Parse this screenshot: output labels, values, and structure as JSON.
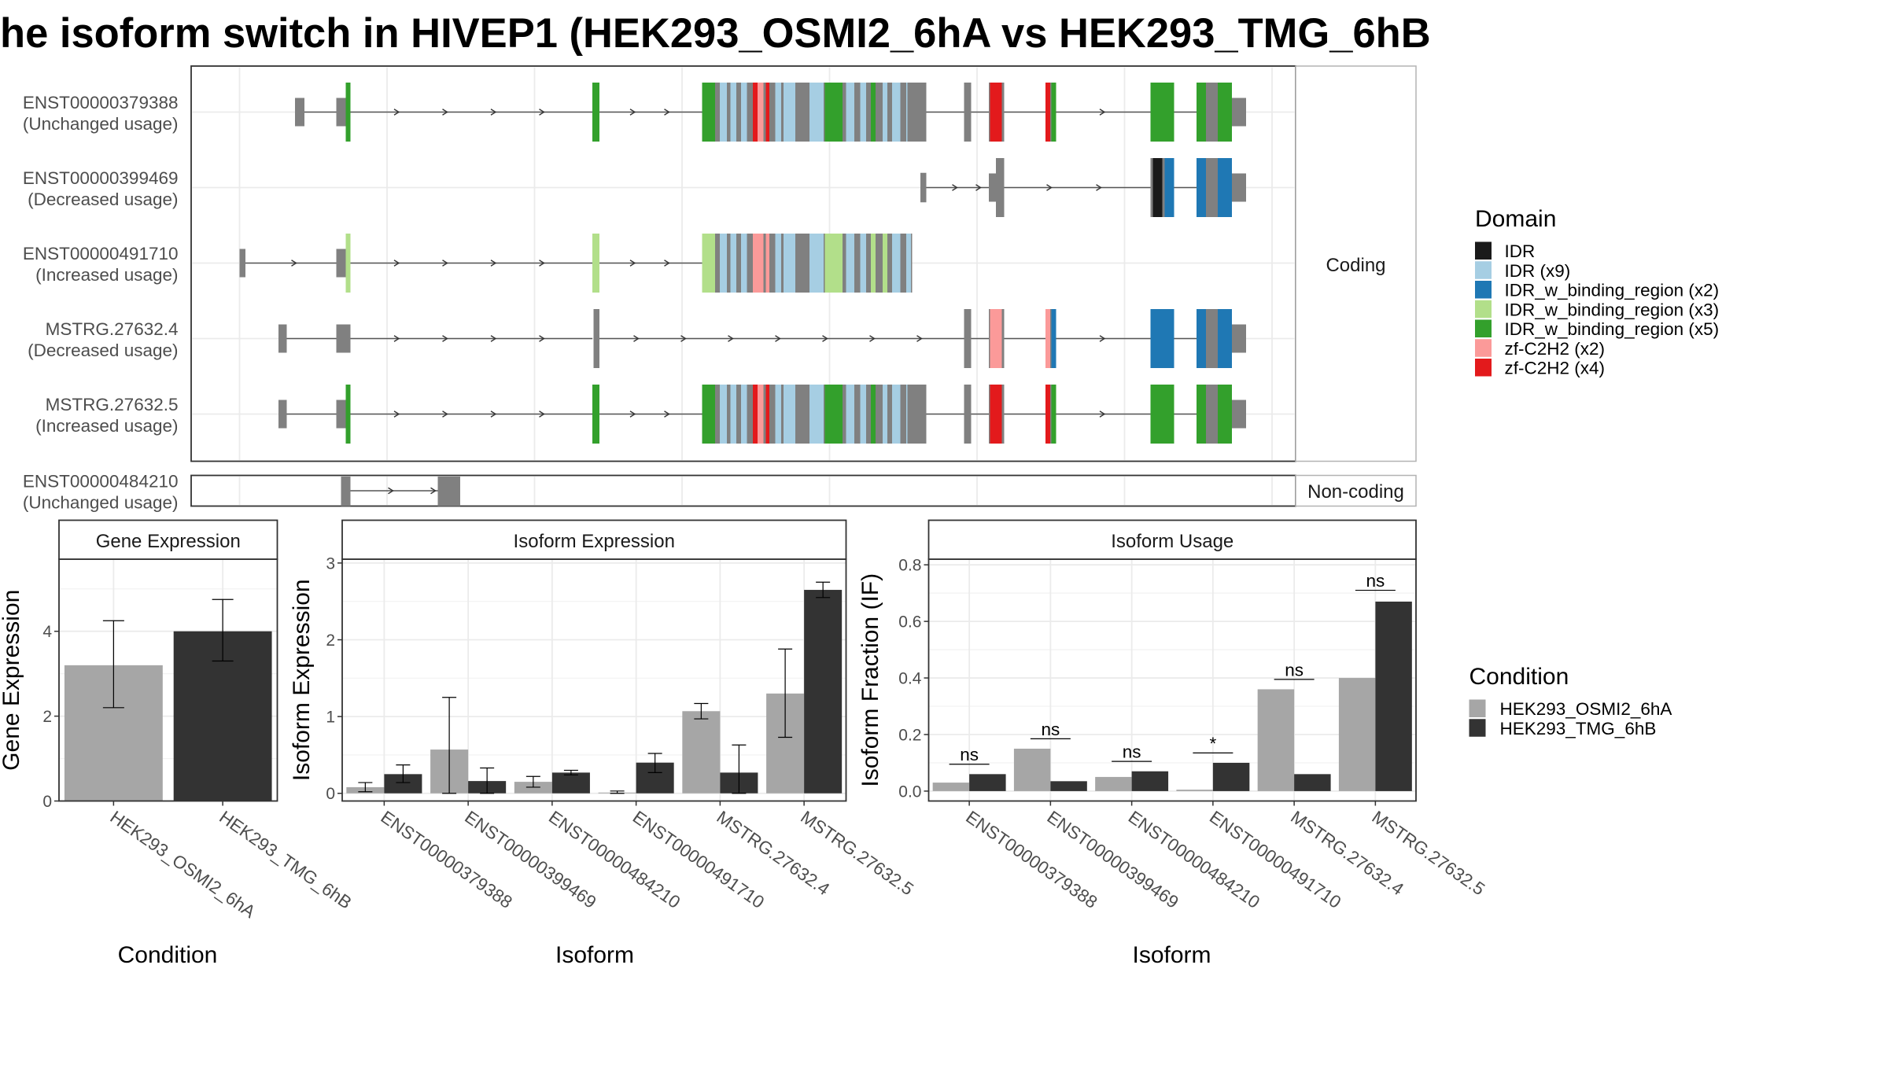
{
  "title": "he isoform switch in HIVEP1 (HEK293_OSMI2_6hA vs HEK293_TMG_6hB",
  "colors": {
    "cond_a": "#a6a6a6",
    "cond_b": "#333333",
    "utr": "#808080",
    "intron": "#555555"
  },
  "structure": {
    "facets": {
      "coding": "Coding",
      "noncoding": "Non-coding"
    },
    "domain_legend": {
      "title": "Domain",
      "items": [
        {
          "label": "IDR",
          "color": "#1a1a1a"
        },
        {
          "label": "IDR (x9)",
          "color": "#a6cee3"
        },
        {
          "label": "IDR_w_binding_region (x2)",
          "color": "#1f78b4"
        },
        {
          "label": "IDR_w_binding_region (x3)",
          "color": "#b2df8a"
        },
        {
          "label": "IDR_w_binding_region (x5)",
          "color": "#33a02c"
        },
        {
          "label": "zf-C2H2 (x2)",
          "color": "#fb9a99"
        },
        {
          "label": "zf-C2H2 (x4)",
          "color": "#e31a1c"
        }
      ]
    },
    "transcripts": [
      {
        "id": "ENST00000379388",
        "usage": "(Unchanged usage)",
        "facet": "coding"
      },
      {
        "id": "ENST00000399469",
        "usage": "(Decreased usage)",
        "facet": "coding"
      },
      {
        "id": "ENST00000491710",
        "usage": "(Increased usage)",
        "facet": "coding"
      },
      {
        "id": "MSTRG.27632.4",
        "usage": "(Decreased usage)",
        "facet": "coding"
      },
      {
        "id": "MSTRG.27632.5",
        "usage": "(Increased usage)",
        "facet": "coding"
      },
      {
        "id": "ENST00000484210",
        "usage": "(Unchanged usage)",
        "facet": "noncoding"
      }
    ]
  },
  "condition_legend": {
    "title": "Condition",
    "items": [
      {
        "label": "HEK293_OSMI2_6hA",
        "color": "#a6a6a6"
      },
      {
        "label": "HEK293_TMG_6hB",
        "color": "#333333"
      }
    ]
  },
  "chart_data": [
    {
      "type": "bar",
      "title": "Gene Expression",
      "xlabel": "Condition",
      "ylabel": "Gene Expression",
      "ylim": [
        0,
        5.7
      ],
      "yticks": [
        0,
        2,
        4
      ],
      "categories": [
        "HEK293_OSMI2_6hA",
        "HEK293_TMG_6hB"
      ],
      "values": [
        3.2,
        4.0
      ],
      "errors": [
        [
          2.2,
          4.25
        ],
        [
          3.3,
          4.75
        ]
      ]
    },
    {
      "type": "bar",
      "title": "Isoform Expression",
      "xlabel": "Isoform",
      "ylabel": "Isoform Expression",
      "ylim": [
        -0.1,
        3.05
      ],
      "yticks": [
        0,
        1,
        2,
        3
      ],
      "categories": [
        "ENST00000379388",
        "ENST00000399469",
        "ENST00000484210",
        "ENST00000491710",
        "MSTRG.27632.4",
        "MSTRG.27632.5"
      ],
      "series": [
        {
          "name": "HEK293_OSMI2_6hA",
          "values": [
            0.08,
            0.57,
            0.15,
            0.01,
            1.07,
            1.3
          ],
          "errors": [
            [
              0.02,
              0.14
            ],
            [
              0.0,
              1.25
            ],
            [
              0.08,
              0.22
            ],
            [
              0.0,
              0.03
            ],
            [
              0.97,
              1.17
            ],
            [
              0.73,
              1.88
            ]
          ]
        },
        {
          "name": "HEK293_TMG_6hB",
          "values": [
            0.25,
            0.16,
            0.27,
            0.4,
            0.27,
            2.65
          ],
          "errors": [
            [
              0.14,
              0.37
            ],
            [
              0.0,
              0.33
            ],
            [
              0.24,
              0.3
            ],
            [
              0.27,
              0.52
            ],
            [
              0.0,
              0.63
            ],
            [
              2.55,
              2.75
            ]
          ]
        }
      ]
    },
    {
      "type": "bar",
      "title": "Isoform Usage",
      "xlabel": "Isoform",
      "ylabel": "Isoform Fraction (IF)",
      "ylim": [
        -0.035,
        0.82
      ],
      "yticks": [
        "0.0",
        "0.2",
        "0.4",
        "0.6",
        "0.8"
      ],
      "categories": [
        "ENST00000379388",
        "ENST00000399469",
        "ENST00000484210",
        "ENST00000491710",
        "MSTRG.27632.4",
        "MSTRG.27632.5"
      ],
      "series": [
        {
          "name": "HEK293_OSMI2_6hA",
          "values": [
            0.03,
            0.15,
            0.05,
            0.005,
            0.36,
            0.4
          ]
        },
        {
          "name": "HEK293_TMG_6hB",
          "values": [
            0.06,
            0.035,
            0.07,
            0.1,
            0.06,
            0.67
          ]
        }
      ],
      "significance": [
        {
          "label": "ns",
          "y": 0.095
        },
        {
          "label": "ns",
          "y": 0.185
        },
        {
          "label": "ns",
          "y": 0.105
        },
        {
          "label": "*",
          "y": 0.135
        },
        {
          "label": "ns",
          "y": 0.395
        },
        {
          "label": "ns",
          "y": 0.71
        }
      ]
    }
  ]
}
